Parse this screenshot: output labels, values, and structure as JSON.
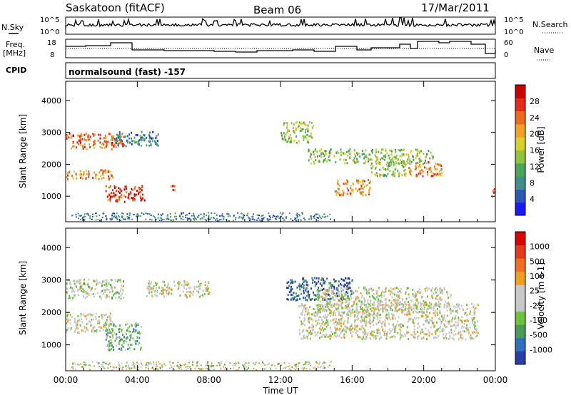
{
  "header": {
    "site": "Saskatoon (fitACF)",
    "beam": "Beam 06",
    "date": "17/Mar/2011"
  },
  "panels": {
    "nsky": {
      "label": "N.Sky",
      "ticks": [
        "10^5",
        "10^0"
      ],
      "right_label": "N.Search",
      "right_ticks": [
        "10^5",
        "10^0"
      ]
    },
    "freq": {
      "label_line1": "Freq.",
      "label_line2": "[MHz]",
      "ticks": [
        "18",
        "8"
      ],
      "right_label": "Nave",
      "right_ticks": [
        "60",
        "0"
      ]
    },
    "cpid": {
      "label": "CPID",
      "text": "normalsound (fast) -157"
    }
  },
  "chart_data": [
    {
      "type": "heatmap",
      "name": "power",
      "ylabel": "Slant Range [km]",
      "yticks": [
        "1000",
        "2000",
        "3000",
        "4000"
      ],
      "ylim": [
        200,
        4600
      ],
      "xlim": [
        0,
        24
      ],
      "colorbar_label": "Power [dB]",
      "colorbar_ticks": [
        "4",
        "8",
        "12",
        "16",
        "20",
        "24",
        "28"
      ],
      "colorscale": [
        "#1a1aff",
        "#2f58b8",
        "#3f8f8f",
        "#4aa65a",
        "#8fc43b",
        "#d7d22a",
        "#f3a024",
        "#f06a1c",
        "#e52a18",
        "#cc0000"
      ],
      "regions": [
        {
          "t0": 0.0,
          "t1": 3.2,
          "r0": 2500,
          "r1": 3000,
          "level": 0.75
        },
        {
          "t0": 0.0,
          "t1": 2.6,
          "r0": 1550,
          "r1": 1850,
          "level": 0.7
        },
        {
          "t0": 2.2,
          "t1": 4.4,
          "r0": 850,
          "r1": 1350,
          "level": 0.85
        },
        {
          "t0": 2.7,
          "t1": 5.2,
          "r0": 2600,
          "r1": 3050,
          "level": 0.25
        },
        {
          "t0": 5.8,
          "t1": 6.1,
          "r0": 1200,
          "r1": 1450,
          "level": 0.8
        },
        {
          "t0": 12.0,
          "t1": 13.8,
          "r0": 2700,
          "r1": 3350,
          "level": 0.45
        },
        {
          "t0": 13.5,
          "t1": 20.5,
          "r0": 2050,
          "r1": 2500,
          "level": 0.45
        },
        {
          "t0": 15.0,
          "t1": 17.0,
          "r0": 1050,
          "r1": 1550,
          "level": 0.65
        },
        {
          "t0": 19.0,
          "t1": 21.0,
          "r0": 1650,
          "r1": 2100,
          "level": 0.7
        },
        {
          "t0": 17.0,
          "t1": 19.0,
          "r0": 1650,
          "r1": 2100,
          "level": 0.45
        },
        {
          "t0": 23.7,
          "t1": 24.0,
          "r0": 1000,
          "r1": 1250,
          "level": 0.8
        }
      ]
    },
    {
      "type": "heatmap",
      "name": "velocity",
      "ylabel": "Slant Range [km]",
      "yticks": [
        "1000",
        "2000",
        "3000",
        "4000"
      ],
      "ylim": [
        200,
        4600
      ],
      "xlim": [
        0,
        24
      ],
      "xticks": [
        "00:00",
        "04:00",
        "08:00",
        "12:00",
        "16:00",
        "20:00",
        "00:00"
      ],
      "xlabel": "Time UT",
      "colorbar_label": "Velocity [m s-1]",
      "colorbar_ticks": [
        "1000",
        "500",
        "100",
        "25",
        "-25",
        "-100",
        "-500",
        "-1000"
      ],
      "colorscale": [
        "#2a3ea8",
        "#2f6fbf",
        "#4a9a58",
        "#6cc43b",
        "#c8c8c8",
        "#c8c8c8",
        "#f0a020",
        "#f07020",
        "#e43a18",
        "#dd0000"
      ],
      "regions": [
        {
          "t0": 0.0,
          "t1": 3.2,
          "r0": 2450,
          "r1": 3050,
          "level": 0.45
        },
        {
          "t0": 0.0,
          "t1": 2.6,
          "r0": 1400,
          "r1": 2000,
          "level": 0.5
        },
        {
          "t0": 2.2,
          "t1": 4.2,
          "r0": 850,
          "r1": 1700,
          "level": 0.3
        },
        {
          "t0": 4.5,
          "t1": 8.0,
          "r0": 2500,
          "r1": 3000,
          "level": 0.5
        },
        {
          "t0": 12.3,
          "t1": 16.0,
          "r0": 2400,
          "r1": 3100,
          "level": 0.12
        },
        {
          "t0": 13.0,
          "t1": 23.0,
          "r0": 1200,
          "r1": 2300,
          "level": 0.5
        },
        {
          "t0": 14.0,
          "t1": 21.5,
          "r0": 2000,
          "r1": 2800,
          "level": 0.48
        }
      ]
    }
  ]
}
